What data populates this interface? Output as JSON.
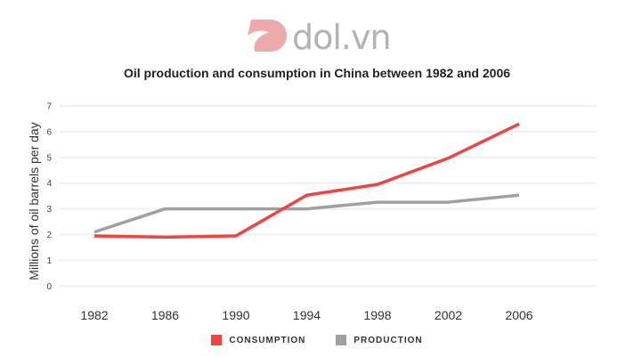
{
  "logo": "dol.vn",
  "chart_data": {
    "type": "line",
    "title": "Oil production and consumption in China between 1982 and 2006",
    "xlabel": "",
    "ylabel": "Millions of oil barrels per day",
    "ylim": [
      0,
      7
    ],
    "yticks": [
      "0",
      "1",
      "2",
      "3",
      "4",
      "5",
      "6",
      "7"
    ],
    "categories": [
      "1982",
      "1986",
      "1990",
      "1994",
      "1998",
      "2002",
      "2006"
    ],
    "grid": true,
    "legend_position": "bottom",
    "series": [
      {
        "name": "CONSUMPTION",
        "color": "#ef4444",
        "values": [
          1.95,
          1.9,
          1.95,
          3.53,
          3.95,
          4.97,
          6.3
        ]
      },
      {
        "name": "PRODUCTION",
        "color": "#a0a0a0",
        "values": [
          2.1,
          3,
          3,
          3,
          3.26,
          3.26,
          3.53
        ]
      }
    ]
  }
}
